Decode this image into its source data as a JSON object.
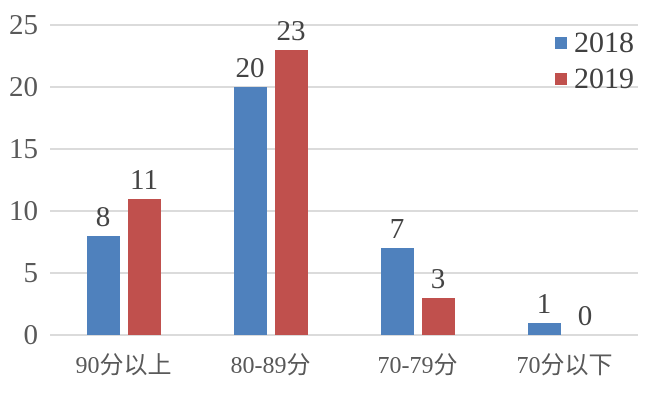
{
  "chart_data": {
    "type": "bar",
    "title": "",
    "xlabel": "",
    "ylabel": "",
    "categories": [
      "90分以上",
      "80-89分",
      "70-79分",
      "70分以下"
    ],
    "series": [
      {
        "name": "2018",
        "color": "#4F81BD",
        "values": [
          8,
          20,
          7,
          1
        ]
      },
      {
        "name": "2019",
        "color": "#C0504D",
        "values": [
          11,
          23,
          3,
          0
        ]
      }
    ],
    "data_labels": true,
    "yticks": [
      0,
      5,
      10,
      15,
      20,
      25
    ],
    "ylim": [
      0,
      25
    ],
    "grid": true,
    "legend_position": "top-right"
  },
  "colors": {
    "background": "#FFFFFF",
    "gridline": "#DBDBDB",
    "tick_text": "#595959",
    "category_text": "#595959",
    "data_label_text": "#444444",
    "legend_text": "#404040",
    "series_2018": "#4F81BD",
    "series_2019": "#C0504D"
  }
}
